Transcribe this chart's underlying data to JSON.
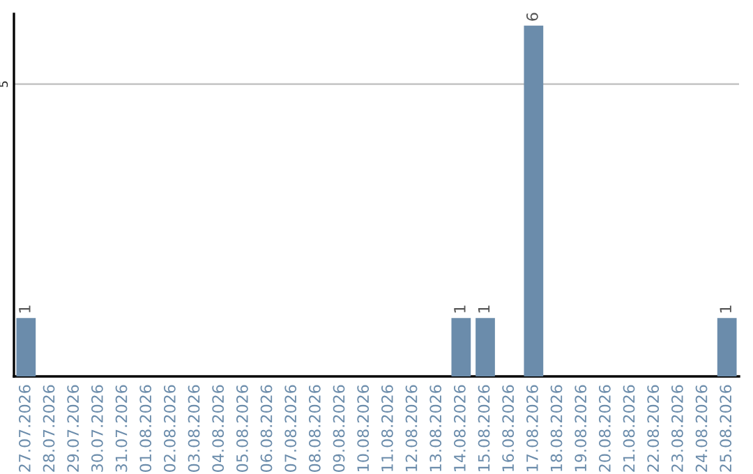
{
  "chart_data": {
    "type": "bar",
    "categories": [
      "27.07.2026",
      "28.07.2026",
      "29.07.2026",
      "30.07.2026",
      "31.07.2026",
      "01.08.2026",
      "02.08.2026",
      "03.08.2026",
      "04.08.2026",
      "05.08.2026",
      "06.08.2026",
      "07.08.2026",
      "08.08.2026",
      "09.08.2026",
      "10.08.2026",
      "11.08.2026",
      "12.08.2026",
      "13.08.2026",
      "14.08.2026",
      "15.08.2026",
      "16.08.2026",
      "17.08.2026",
      "18.08.2026",
      "19.08.2026",
      "20.08.2026",
      "21.08.2026",
      "22.08.2026",
      "23.08.2026",
      "24.08.2026",
      "25.08.2026"
    ],
    "values": [
      1,
      0,
      0,
      0,
      0,
      0,
      0,
      0,
      0,
      0,
      0,
      0,
      0,
      0,
      0,
      0,
      0,
      0,
      1,
      1,
      0,
      6,
      0,
      0,
      0,
      0,
      0,
      0,
      0,
      1
    ],
    "value_labels": [
      "1",
      null,
      null,
      null,
      null,
      null,
      null,
      null,
      null,
      null,
      null,
      null,
      null,
      null,
      null,
      null,
      null,
      null,
      "1",
      "1",
      null,
      "6",
      null,
      null,
      null,
      null,
      null,
      null,
      null,
      "1"
    ],
    "color": "#6b8cab",
    "ylim": [
      0,
      6.2
    ],
    "yticks": [
      5
    ],
    "grid": "y"
  }
}
